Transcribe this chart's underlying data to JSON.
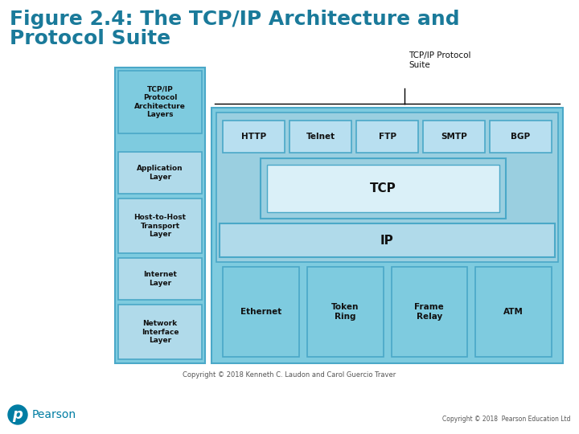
{
  "title_line1": "Figure 2.4: The TCP/IP Architecture and",
  "title_line2": "Protocol Suite",
  "title_color": "#1a7a9a",
  "title_fontsize": 18,
  "background_color": "#ffffff",
  "inner_copyright": "Copyright © 2018 Kenneth C. Laudon and Carol Guercio Traver",
  "footer_copyright": "Copyright © 2018  Pearson Education Ltd",
  "pearson_text": "Pearson",
  "left_column_header": "TCP/IP\nProtocol\nArchitecture\nLayers",
  "left_col_bg": "#7ecbdf",
  "left_col_border": "#4aa8c8",
  "header_box_bg": "#7ecbdf",
  "header_box_border": "#4aa8c8",
  "layer_box_bg": "#b0daea",
  "layer_box_border": "#4aa8c8",
  "suite_outer_bg": "#7ecbdf",
  "suite_outer_border": "#4aa8c8",
  "suite_inner_bg": "#9acfe0",
  "suite_label": "TCP/IP Protocol\nSuite",
  "app_protocols": [
    "HTTP",
    "Telnet",
    "FTP",
    "SMTP",
    "BGP"
  ],
  "app_proto_bg": "#b8dff0",
  "app_proto_border": "#4aa8c8",
  "tcp_outer_bg": "#9acfe0",
  "tcp_outer_border": "#4aa8c8",
  "tcp_inner_bg": "#daf0f8",
  "tcp_label": "TCP",
  "ip_bg": "#b0daea",
  "ip_border": "#4aa8c8",
  "ip_label": "IP",
  "net_protocols": [
    "Ethernet",
    "Token\nRing",
    "Frame\nRelay",
    "ATM"
  ],
  "net_proto_bg": "#7ecbdf",
  "net_proto_border": "#4aa8c8"
}
